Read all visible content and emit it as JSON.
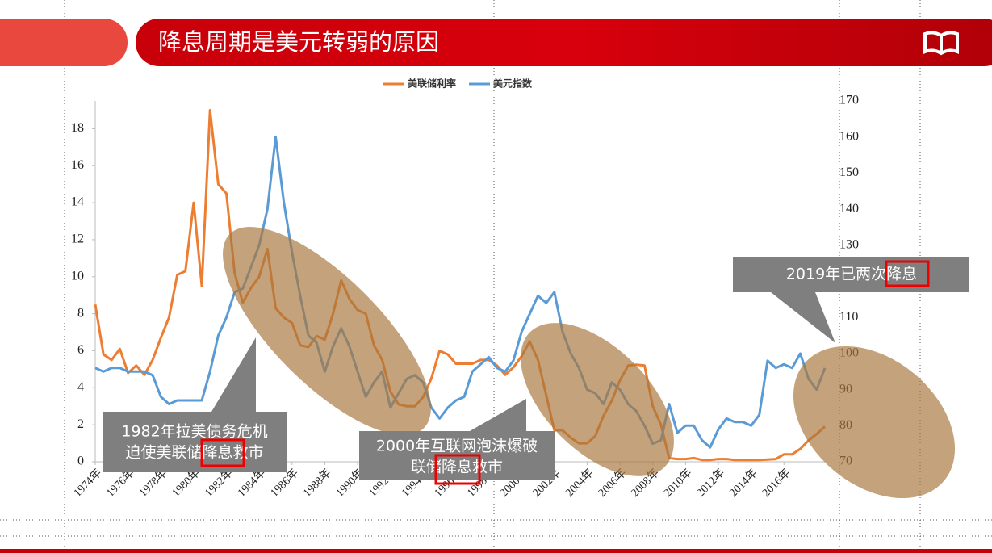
{
  "header": {
    "title": "降息周期是美元转弱的原因"
  },
  "chart_data": {
    "type": "line",
    "x": [
      1974,
      1974.5,
      1975,
      1975.5,
      1976,
      1976.5,
      1977,
      1977.5,
      1978,
      1978.5,
      1979,
      1979.5,
      1980,
      1980.5,
      1981,
      1981.5,
      1982,
      1982.5,
      1983,
      1983.5,
      1984,
      1984.5,
      1985,
      1985.5,
      1986,
      1986.5,
      1987,
      1987.5,
      1988,
      1988.5,
      1989,
      1989.5,
      1990,
      1990.5,
      1991,
      1991.5,
      1992,
      1992.5,
      1993,
      1993.5,
      1994,
      1994.5,
      1995,
      1995.5,
      1996,
      1996.5,
      1997,
      1997.5,
      1998,
      1998.5,
      1999,
      1999.5,
      2000,
      2000.5,
      2001,
      2001.5,
      2002,
      2002.5,
      2003,
      2003.5,
      2004,
      2004.5,
      2005,
      2005.5,
      2006,
      2006.5,
      2007,
      2007.5,
      2008,
      2008.5,
      2009,
      2009.5,
      2010,
      2010.5,
      2011,
      2011.5,
      2012,
      2012.5,
      2013,
      2013.5,
      2014,
      2014.5,
      2015,
      2015.5,
      2016,
      2016.5,
      2017,
      2017.5,
      2018,
      2018.5
    ],
    "series": [
      {
        "name": "美联储利率",
        "color": "#ed7d31",
        "axis": "y",
        "values": [
          8.5,
          5.8,
          5.5,
          6.1,
          4.8,
          5.2,
          4.7,
          5.5,
          6.7,
          7.8,
          10.1,
          10.3,
          14,
          9.5,
          19,
          15,
          14.5,
          10.2,
          8.6,
          9.4,
          10,
          11.5,
          8.3,
          7.8,
          7.5,
          6.3,
          6.2,
          6.8,
          6.6,
          8,
          9.8,
          8.8,
          8.2,
          8,
          6.3,
          5.5,
          3.8,
          3.1,
          3,
          3,
          3.5,
          4.5,
          6,
          5.8,
          5.3,
          5.3,
          5.3,
          5.5,
          5.5,
          5.2,
          4.7,
          5.1,
          5.7,
          6.5,
          5.5,
          3.6,
          1.7,
          1.7,
          1.3,
          1,
          1,
          1.4,
          2.5,
          3.3,
          4.4,
          5.2,
          5.25,
          5.2,
          3,
          2,
          0.2,
          0.15,
          0.15,
          0.2,
          0.1,
          0.1,
          0.15,
          0.15,
          0.1,
          0.1,
          0.1,
          0.1,
          0.12,
          0.15,
          0.4,
          0.4,
          0.7,
          1.15,
          1.5,
          1.9
        ]
      },
      {
        "name": "美元指数",
        "color": "#5b9bd5",
        "axis": "y2",
        "values": [
          96,
          95,
          96,
          96,
          95,
          95,
          95,
          94,
          88,
          86,
          87,
          87,
          87,
          87,
          95,
          105,
          110,
          117,
          118,
          124,
          130,
          140,
          160,
          142,
          128,
          116,
          105,
          103,
          95,
          102,
          107,
          102,
          95,
          88,
          92,
          95,
          85,
          89,
          93,
          94,
          92,
          85,
          82,
          85,
          87,
          88,
          95,
          97,
          99,
          96,
          95,
          98,
          106,
          111,
          116,
          114,
          117,
          106,
          100,
          96,
          90,
          89,
          86,
          92,
          90,
          86,
          84,
          80,
          75,
          76,
          86,
          78,
          80,
          80,
          76,
          74,
          79,
          82,
          81,
          81,
          80,
          83,
          98,
          96,
          97,
          96,
          100,
          93,
          90,
          96
        ]
      }
    ],
    "xlim": [
      1974,
      2018.5
    ],
    "xticks": [
      {
        "value": 1974,
        "label": "1974年"
      },
      {
        "value": 1976,
        "label": "1976年"
      },
      {
        "value": 1978,
        "label": "1978年"
      },
      {
        "value": 1980,
        "label": "1980年"
      },
      {
        "value": 1982,
        "label": "1982年"
      },
      {
        "value": 1984,
        "label": "1984年"
      },
      {
        "value": 1986,
        "label": "1986年"
      },
      {
        "value": 1988,
        "label": "1988年"
      },
      {
        "value": 1990,
        "label": "1990年"
      },
      {
        "value": 1992,
        "label": "1992年"
      },
      {
        "value": 1994,
        "label": "1994年"
      },
      {
        "value": 1996,
        "label": "1996年"
      },
      {
        "value": 1998,
        "label": "1998年"
      },
      {
        "value": 2000,
        "label": "2000年"
      },
      {
        "value": 2002,
        "label": "2002年"
      },
      {
        "value": 2004,
        "label": "2004年"
      },
      {
        "value": 2006,
        "label": "2006年"
      },
      {
        "value": 2008,
        "label": "2008年"
      },
      {
        "value": 2010,
        "label": "2010年"
      },
      {
        "value": 2012,
        "label": "2012年"
      },
      {
        "value": 2014,
        "label": "2014年"
      },
      {
        "value": 2016,
        "label": "2016年"
      }
    ],
    "ylim": [
      0,
      19.5
    ],
    "yticks": [
      0,
      2,
      4,
      6,
      8,
      10,
      12,
      14,
      16,
      18
    ],
    "y2lim": [
      70,
      170
    ],
    "y2ticks": [
      70,
      80,
      90,
      100,
      110,
      120,
      130,
      140,
      150,
      160,
      170
    ],
    "grid": false,
    "legend": "top",
    "annotations": [
      {
        "lines": [
          "1982年拉美债务危机",
          "迫使美联储降息救市"
        ]
      },
      {
        "lines": [
          "2000年互联网泡沫爆破",
          "联储降息救市"
        ]
      },
      {
        "lines": [
          "2019年已两次降息"
        ]
      }
    ]
  }
}
